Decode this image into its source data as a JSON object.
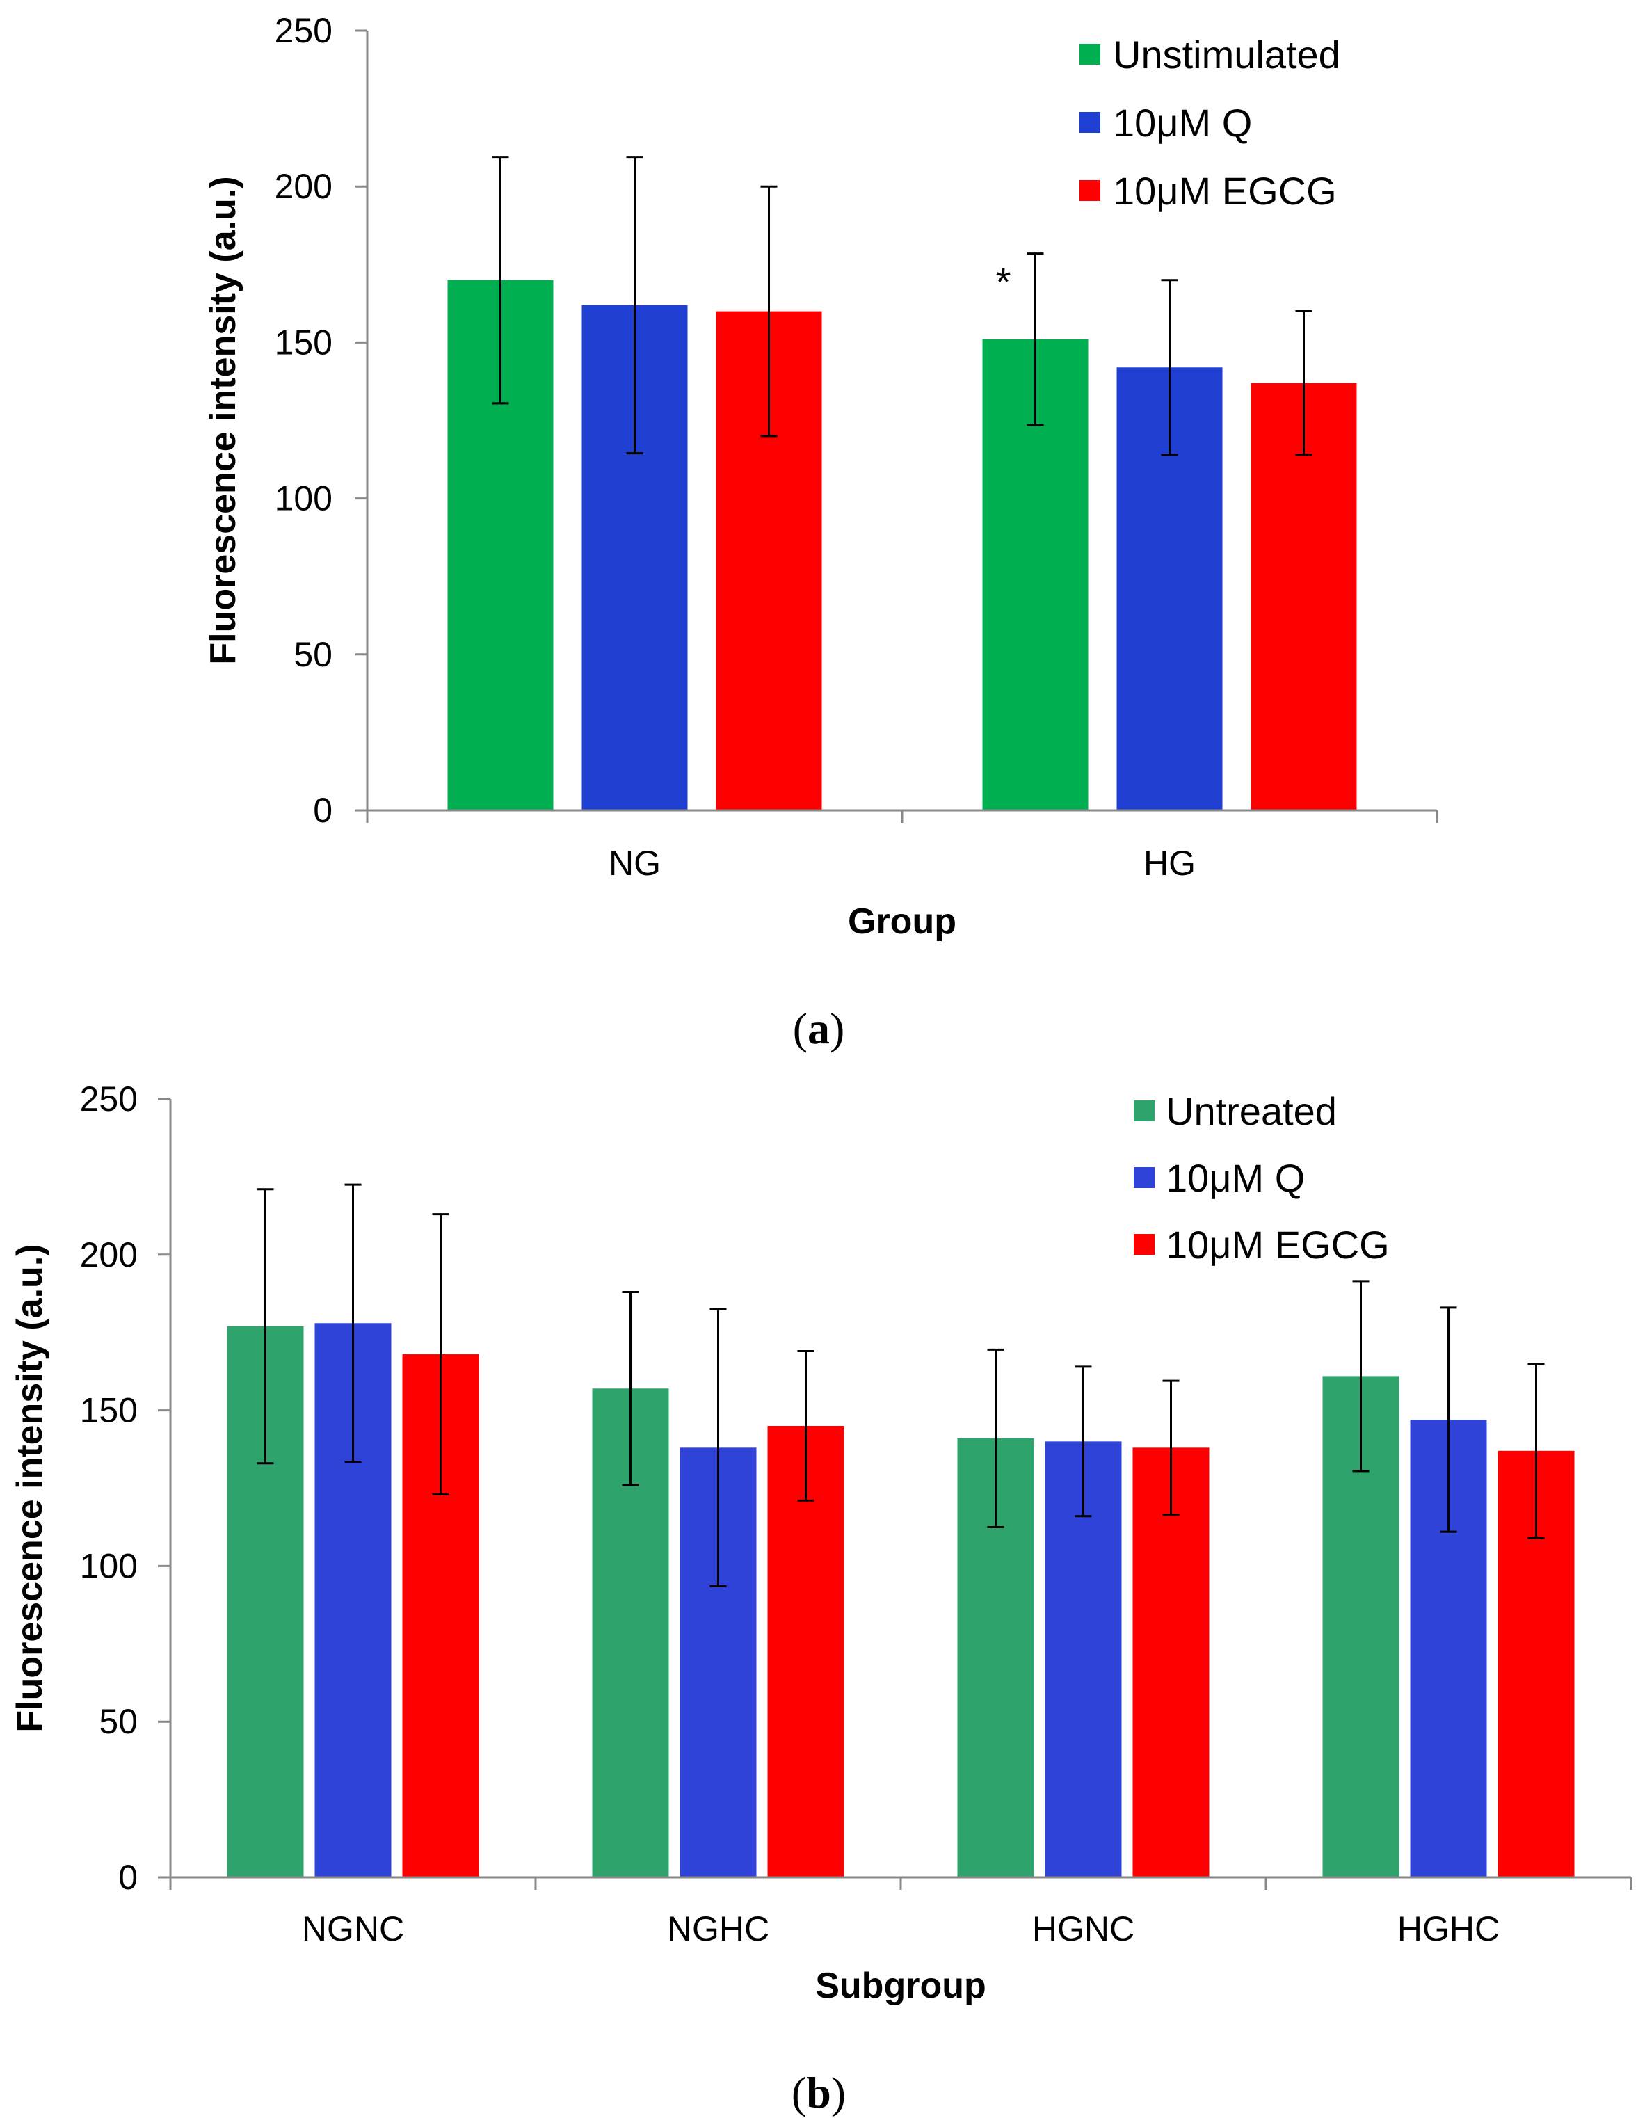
{
  "panel_labels": [
    "a",
    "b"
  ],
  "chart_data": [
    {
      "type": "bar",
      "panel": "a",
      "title": "",
      "xlabel": "Group",
      "ylabel": "Fluorescence intensity (a.u.)",
      "ylim": [
        0,
        250
      ],
      "yticks": [
        0,
        50,
        100,
        150,
        200,
        250
      ],
      "grid": false,
      "legend_position": "top-right",
      "categories": [
        "NG",
        "HG"
      ],
      "series": [
        {
          "name": "Unstimulated",
          "color": "#00b050",
          "values": [
            170,
            151
          ],
          "errors": [
            39.5,
            27.5
          ]
        },
        {
          "name": "10μM Q",
          "color": "#1f3fd2",
          "values": [
            162,
            142
          ],
          "errors": [
            47.5,
            28
          ]
        },
        {
          "name": "10μM EGCG",
          "color": "#ff0000",
          "values": [
            160,
            137
          ],
          "errors": [
            40,
            23
          ]
        }
      ],
      "annotations": [
        {
          "text": "*",
          "category": "HG",
          "series": "Unstimulated"
        }
      ]
    },
    {
      "type": "bar",
      "panel": "b",
      "title": "",
      "xlabel": "Subgroup",
      "ylabel": "Fluorescence intensity (a.u.)",
      "ylim": [
        0,
        250
      ],
      "yticks": [
        0,
        50,
        100,
        150,
        200,
        250
      ],
      "grid": false,
      "legend_position": "top-right",
      "categories": [
        "NGNC",
        "NGHC",
        "HGNC",
        "HGHC"
      ],
      "series": [
        {
          "name": "Untreated",
          "color": "#2ea36b",
          "values": [
            177,
            157,
            141,
            161
          ],
          "errors": [
            44,
            31,
            28.5,
            30.5
          ]
        },
        {
          "name": "10μM Q",
          "color": "#2f43d8",
          "values": [
            178,
            138,
            140,
            147
          ],
          "errors": [
            44.5,
            44.5,
            24,
            36
          ]
        },
        {
          "name": "10μM EGCG",
          "color": "#ff0000",
          "values": [
            168,
            145,
            138,
            137
          ],
          "errors": [
            45,
            24,
            21.5,
            28
          ]
        }
      ],
      "annotations": []
    }
  ]
}
